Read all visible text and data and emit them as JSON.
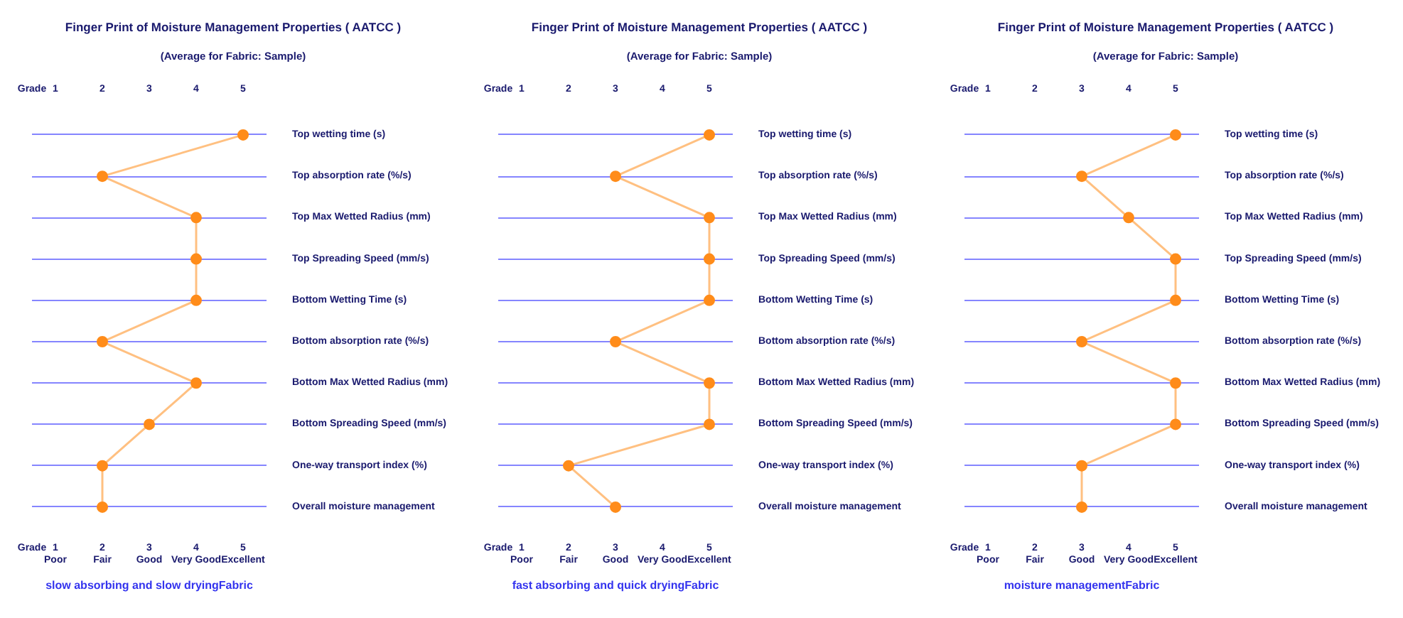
{
  "chart_data": [
    {
      "type": "line",
      "orientation": "horizontal",
      "title": "Finger Print of Moisture Management Properties ( AATCC )",
      "subtitle": "(Average for Fabric: Sample)",
      "xlabel": "Grade",
      "categories": [
        "Top wetting time (s)",
        "Top absorption rate (%/s)",
        "Top Max Wetted Radius (mm)",
        "Top Spreading Speed (mm/s)",
        "Bottom Wetting Time (s)",
        "Bottom absorption rate (%/s)",
        "Bottom Max Wetted Radius (mm)",
        "Bottom Spreading Speed (mm/s)",
        "One-way transport index (%)",
        "Overall moisture management"
      ],
      "series": [
        {
          "color": "#ff8c1a",
          "values": [
            5,
            2,
            4,
            4,
            4,
            2,
            4,
            3,
            2,
            2
          ]
        }
      ],
      "xlim": [
        0.5,
        5.5
      ],
      "xticks": [
        {
          "value": 1,
          "label": "1\nPoor"
        },
        {
          "value": 2,
          "label": "2\nFair"
        },
        {
          "value": 3,
          "label": "3\nGood"
        },
        {
          "value": 4,
          "label": "4\nVery Good"
        },
        {
          "value": 5,
          "label": "5\nExcellent"
        }
      ],
      "x2lim": [
        0.5,
        5.5
      ],
      "x2ticks": [
        1,
        2,
        3,
        4,
        5
      ],
      "grid": "y",
      "marker": "circle",
      "annotations": [
        "slow absorbing and slow dryingFabric"
      ]
    },
    {
      "type": "line",
      "orientation": "horizontal",
      "title": "Finger Print of Moisture Management Properties ( AATCC )",
      "subtitle": "(Average for Fabric: Sample)",
      "xlabel": "Grade",
      "categories": [
        "Top wetting time (s)",
        "Top absorption rate (%/s)",
        "Top Max Wetted Radius (mm)",
        "Top Spreading Speed (mm/s)",
        "Bottom Wetting Time (s)",
        "Bottom absorption rate (%/s)",
        "Bottom Max Wetted Radius (mm)",
        "Bottom Spreading Speed (mm/s)",
        "One-way transport index (%)",
        "Overall moisture management"
      ],
      "series": [
        {
          "color": "#ff8c1a",
          "values": [
            5,
            3,
            5,
            5,
            5,
            3,
            5,
            5,
            2,
            3
          ]
        }
      ],
      "xlim": [
        0.5,
        5.5
      ],
      "xticks": [
        {
          "value": 1,
          "label": "1\nPoor"
        },
        {
          "value": 2,
          "label": "2\nFair"
        },
        {
          "value": 3,
          "label": "3\nGood"
        },
        {
          "value": 4,
          "label": "4\nVery Good"
        },
        {
          "value": 5,
          "label": "5\nExcellent"
        }
      ],
      "x2lim": [
        0.5,
        5.5
      ],
      "x2ticks": [
        1,
        2,
        3,
        4,
        5
      ],
      "grid": "y",
      "marker": "circle",
      "annotations": [
        "fast absorbing and quick dryingFabric"
      ]
    },
    {
      "type": "line",
      "orientation": "horizontal",
      "title": "Finger Print of Moisture Management Properties ( AATCC )",
      "subtitle": "(Average for Fabric: Sample)",
      "xlabel": "Grade",
      "categories": [
        "Top wetting time (s)",
        "Top absorption rate (%/s)",
        "Top Max Wetted Radius (mm)",
        "Top Spreading Speed (mm/s)",
        "Bottom Wetting Time (s)",
        "Bottom absorption rate (%/s)",
        "Bottom Max Wetted Radius (mm)",
        "Bottom Spreading Speed (mm/s)",
        "One-way transport index (%)",
        "Overall moisture management"
      ],
      "series": [
        {
          "color": "#ff8c1a",
          "values": [
            5,
            3,
            4,
            5,
            5,
            3,
            5,
            5,
            3,
            3
          ]
        }
      ],
      "xlim": [
        0.5,
        5.5
      ],
      "xticks": [
        {
          "value": 1,
          "label": "1\nPoor"
        },
        {
          "value": 2,
          "label": "2\nFair"
        },
        {
          "value": 3,
          "label": "3\nGood"
        },
        {
          "value": 4,
          "label": "4\nVery Good"
        },
        {
          "value": 5,
          "label": "5\nExcellent"
        }
      ],
      "x2lim": [
        0.5,
        5.5
      ],
      "x2ticks": [
        1,
        2,
        3,
        4,
        5
      ],
      "grid": "y",
      "marker": "circle",
      "annotations": [
        "moisture managementFabric"
      ]
    }
  ]
}
